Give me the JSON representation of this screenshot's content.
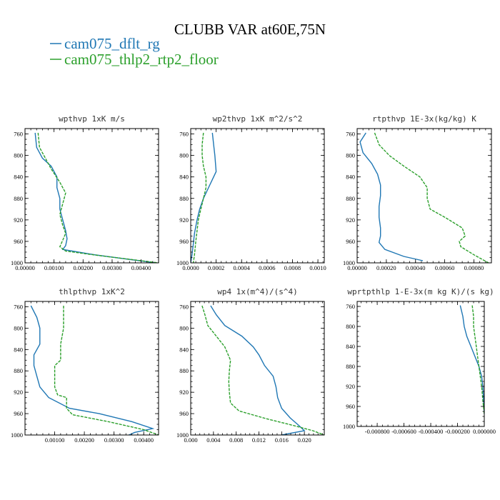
{
  "figure": {
    "title": "CLUBB VAR at60E,75N",
    "legend": [
      {
        "label": "cam075_dflt_rg",
        "color": "#1f77b4",
        "style": "solid"
      },
      {
        "label": "cam075_thlp2_rtp2_floor",
        "color": "#2ca02c",
        "style": "dashed"
      }
    ]
  },
  "chart_data": [
    {
      "type": "line",
      "title": "wpthvp  1xK m/s",
      "xlim": [
        0,
        0.0046
      ],
      "ylim": [
        1000,
        750
      ],
      "xticks": [
        0,
        0.001,
        0.002,
        0.003,
        0.004
      ],
      "xtick_labels": [
        "0.00000",
        "0.00100",
        "0.00200",
        "0.00300",
        "0.00400"
      ],
      "yticks": [
        760,
        800,
        840,
        880,
        920,
        960,
        1000
      ],
      "series": [
        {
          "name": "cam075_dflt_rg",
          "color": "#1f77b4",
          "dashed": false,
          "x": [
            0.00035,
            0.0004,
            0.0006,
            0.0009,
            0.0011,
            0.0011,
            0.0012,
            0.0012,
            0.0013,
            0.0014,
            0.00145,
            0.0014,
            0.0013,
            0.0024,
            0.0035,
            0.0045
          ],
          "y": [
            758,
            785,
            805,
            820,
            840,
            860,
            880,
            900,
            920,
            940,
            955,
            968,
            975,
            985,
            993,
            1000
          ]
        },
        {
          "name": "cam075_thlp2_rtp2_floor",
          "color": "#2ca02c",
          "dashed": true,
          "x": [
            0.00045,
            0.0005,
            0.0007,
            0.0009,
            0.0012,
            0.0014,
            0.0013,
            0.0012,
            0.0013,
            0.0014,
            0.0013,
            0.0012,
            0.0014,
            0.0025,
            0.0037,
            0.0046
          ],
          "y": [
            758,
            785,
            805,
            825,
            850,
            870,
            890,
            910,
            930,
            945,
            958,
            970,
            978,
            986,
            994,
            1000
          ]
        }
      ]
    },
    {
      "type": "line",
      "title": "wp2thvp  1xK m^2/s^2",
      "xlim": [
        0,
        0.00105
      ],
      "ylim": [
        1000,
        750
      ],
      "xticks": [
        0,
        0.0002,
        0.0004,
        0.0006,
        0.0008,
        0.001
      ],
      "xtick_labels": [
        "0.0000",
        "0.0002",
        "0.0004",
        "0.0006",
        "0.0008",
        "0.0010"
      ],
      "yticks": [
        760,
        800,
        840,
        880,
        920,
        960,
        1000
      ],
      "series": [
        {
          "name": "cam075_dflt_rg",
          "color": "#1f77b4",
          "dashed": false,
          "x": [
            0.00017,
            0.00018,
            0.00019,
            0.000195,
            0.0002,
            0.00015,
            0.0001,
            7e-05,
            5e-05,
            3e-05,
            2e-05,
            1e-05,
            0.0
          ],
          "y": [
            758,
            780,
            800,
            815,
            830,
            855,
            880,
            900,
            920,
            945,
            965,
            985,
            1000
          ]
        },
        {
          "name": "cam075_thlp2_rtp2_floor",
          "color": "#2ca02c",
          "dashed": true,
          "x": [
            0.0001,
            9e-05,
            9e-05,
            0.0001,
            0.00012,
            0.00012,
            0.0001,
            8e-05,
            6e-05,
            5e-05,
            4e-05,
            3e-05,
            2e-05
          ],
          "y": [
            758,
            780,
            800,
            820,
            840,
            860,
            880,
            900,
            920,
            940,
            960,
            985,
            1000
          ]
        }
      ]
    },
    {
      "type": "line",
      "title": "rtpthvp  1E-3x(kg/kg) K",
      "xlim": [
        0,
        0.00092
      ],
      "ylim": [
        1000,
        750
      ],
      "xticks": [
        0,
        0.0002,
        0.0004,
        0.0006,
        0.0008
      ],
      "xtick_labels": [
        "0.00000",
        "0.00020",
        "0.00040",
        "0.00060",
        "0.00080"
      ],
      "yticks": [
        760,
        800,
        840,
        880,
        920,
        960,
        1000
      ],
      "series": [
        {
          "name": "cam075_dflt_rg",
          "color": "#1f77b4",
          "dashed": false,
          "x": [
            6e-05,
            2e-05,
            4e-05,
            0.0001,
            0.00014,
            0.00016,
            0.00016,
            0.00015,
            0.00015,
            0.00016,
            0.00016,
            0.00015,
            0.00019,
            0.00032,
            0.00045
          ],
          "y": [
            758,
            775,
            795,
            815,
            835,
            855,
            875,
            895,
            915,
            935,
            950,
            962,
            975,
            988,
            996
          ]
        },
        {
          "name": "cam075_thlp2_rtp2_floor",
          "color": "#2ca02c",
          "dashed": true,
          "x": [
            0.00012,
            0.00015,
            0.00022,
            0.00032,
            0.00043,
            0.00048,
            0.00048,
            0.0005,
            0.0006,
            0.00072,
            0.00074,
            0.0007,
            0.00071,
            0.0008,
            0.0009
          ],
          "y": [
            758,
            780,
            800,
            820,
            840,
            860,
            880,
            900,
            915,
            935,
            950,
            960,
            970,
            985,
            1000
          ]
        }
      ]
    },
    {
      "type": "line",
      "title": "thlpthvp  1xK^2",
      "xlim": [
        0,
        0.0045
      ],
      "ylim": [
        1000,
        750
      ],
      "xticks": [
        0.001,
        0.002,
        0.003,
        0.004
      ],
      "xtick_labels": [
        "0.00100",
        "0.00200",
        "0.00300",
        "0.00400"
      ],
      "yticks": [
        760,
        800,
        840,
        880,
        920,
        960,
        1000
      ],
      "series": [
        {
          "name": "cam075_dflt_rg",
          "color": "#1f77b4",
          "dashed": false,
          "x": [
            0.0002,
            0.0004,
            0.0005,
            0.0005,
            0.0003,
            0.0003,
            0.0004,
            0.0005,
            0.0008,
            0.0015,
            0.0025,
            0.0036,
            0.0043,
            0.0037,
            0.0035
          ],
          "y": [
            758,
            780,
            800,
            830,
            850,
            870,
            890,
            910,
            930,
            950,
            960,
            975,
            988,
            995,
            1000
          ]
        },
        {
          "name": "cam075_thlp2_rtp2_floor",
          "color": "#2ca02c",
          "dashed": true,
          "x": [
            0.0013,
            0.0013,
            0.0013,
            0.0012,
            0.0012,
            0.001,
            0.001,
            0.001,
            0.0011,
            0.0014,
            0.0014,
            0.0016,
            0.0028,
            0.004,
            0.0045
          ],
          "y": [
            758,
            780,
            800,
            830,
            860,
            870,
            890,
            910,
            925,
            930,
            950,
            962,
            975,
            990,
            1000
          ]
        }
      ]
    },
    {
      "type": "line",
      "title": "wp4  1x(m^4)/(s^4)",
      "xlim": [
        0,
        0.0235
      ],
      "ylim": [
        1000,
        750
      ],
      "xticks": [
        0,
        0.004,
        0.008,
        0.012,
        0.016,
        0.02
      ],
      "xtick_labels": [
        "0.000",
        "0.004",
        "0.008",
        "0.012",
        "0.016",
        "0.020"
      ],
      "yticks": [
        760,
        800,
        840,
        880,
        920,
        960,
        1000
      ],
      "series": [
        {
          "name": "cam075_dflt_rg",
          "color": "#1f77b4",
          "dashed": false,
          "x": [
            0.0035,
            0.0045,
            0.006,
            0.009,
            0.011,
            0.012,
            0.013,
            0.0145,
            0.015,
            0.0153,
            0.016,
            0.0175,
            0.019,
            0.02,
            0.016
          ],
          "y": [
            758,
            775,
            795,
            815,
            835,
            850,
            870,
            890,
            910,
            930,
            950,
            968,
            982,
            992,
            1000
          ]
        },
        {
          "name": "cam075_thlp2_rtp2_floor",
          "color": "#2ca02c",
          "dashed": true,
          "x": [
            0.002,
            0.0025,
            0.003,
            0.0045,
            0.006,
            0.007,
            0.0068,
            0.0067,
            0.0068,
            0.007,
            0.0085,
            0.0135,
            0.018,
            0.0215,
            0.0235
          ],
          "y": [
            758,
            775,
            795,
            815,
            835,
            860,
            880,
            900,
            920,
            940,
            955,
            970,
            982,
            992,
            1000
          ]
        }
      ]
    },
    {
      "type": "line",
      "title": "wprtpthlp  1-E-3x(m kg K)/(s kg)",
      "xlim": [
        -0.00095,
        0.0
      ],
      "ylim": [
        1000,
        750
      ],
      "xticks": [
        -0.0008,
        -0.0006,
        -0.0004,
        -0.0002,
        0.0
      ],
      "xtick_labels": [
        "-0.000800",
        "-0.000600",
        "-0.000400",
        "-0.000200",
        "0.000000"
      ],
      "yticks": [
        760,
        800,
        840,
        880,
        920,
        960,
        1000
      ],
      "series": [
        {
          "name": "cam075_dflt_rg",
          "color": "#1f77b4",
          "dashed": false,
          "x": [
            -0.00018,
            -0.00016,
            -0.00015,
            -0.00013,
            -0.0001,
            -7e-05,
            -4e-05,
            -2e-05,
            -1e-05,
            -5e-06,
            0.0
          ],
          "y": [
            758,
            780,
            800,
            820,
            840,
            860,
            880,
            900,
            920,
            950,
            975
          ]
        },
        {
          "name": "cam075_thlp2_rtp2_floor",
          "color": "#2ca02c",
          "dashed": true,
          "x": [
            -9e-05,
            -8e-05,
            -8e-05,
            -7e-05,
            -6e-05,
            -5e-05,
            -4e-05,
            -3e-05,
            -2e-05,
            -1e-05,
            0.0
          ],
          "y": [
            758,
            780,
            800,
            820,
            840,
            860,
            880,
            900,
            920,
            950,
            975
          ]
        }
      ]
    }
  ]
}
